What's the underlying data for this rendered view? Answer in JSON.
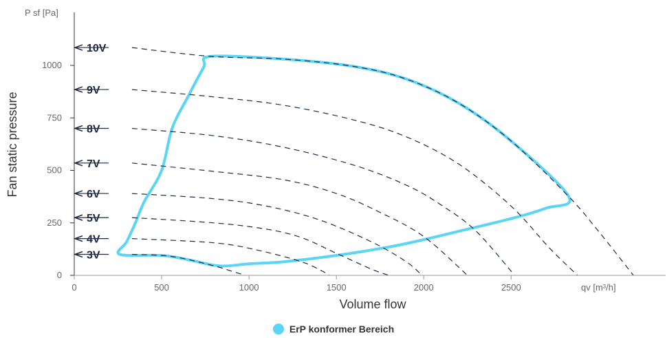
{
  "chart_data": {
    "type": "line",
    "xlabel": "Volume flow",
    "ylabel": "Fan static pressure",
    "x_unit_label": "qv [m³/h]",
    "y_unit_label": "P sf [Pa]",
    "xlim": [
      0,
      3400
    ],
    "ylim": [
      0,
      1250
    ],
    "x_ticks": [
      0,
      500,
      1000,
      1500,
      2000,
      2500
    ],
    "y_ticks": [
      0,
      250,
      500,
      750,
      1000
    ],
    "grid": false,
    "voltage_curves": [
      {
        "name": "10V",
        "y_axis_marker": 1085,
        "points": [
          [
            330,
            1075
          ],
          [
            780,
            1043
          ],
          [
            1200,
            1030
          ],
          [
            1600,
            995
          ],
          [
            1900,
            935
          ],
          [
            2200,
            820
          ],
          [
            2500,
            640
          ],
          [
            2830,
            375
          ],
          [
            3000,
            210
          ],
          [
            3200,
            0
          ]
        ]
      },
      {
        "name": "9V",
        "y_axis_marker": 885,
        "points": [
          [
            330,
            870
          ],
          [
            800,
            850
          ],
          [
            1200,
            810
          ],
          [
            1600,
            740
          ],
          [
            1900,
            660
          ],
          [
            2200,
            530
          ],
          [
            2500,
            330
          ],
          [
            2720,
            130
          ],
          [
            2880,
            0
          ]
        ]
      },
      {
        "name": "8V",
        "y_axis_marker": 700,
        "points": [
          [
            330,
            695
          ],
          [
            800,
            665
          ],
          [
            1200,
            610
          ],
          [
            1600,
            525
          ],
          [
            1900,
            430
          ],
          [
            2100,
            335
          ],
          [
            2300,
            210
          ],
          [
            2520,
            0
          ]
        ]
      },
      {
        "name": "7V",
        "y_axis_marker": 535,
        "points": [
          [
            330,
            520
          ],
          [
            800,
            495
          ],
          [
            1200,
            455
          ],
          [
            1500,
            390
          ],
          [
            1750,
            300
          ],
          [
            2000,
            185
          ],
          [
            2250,
            0
          ]
        ]
      },
      {
        "name": "6V",
        "y_axis_marker": 390,
        "points": [
          [
            330,
            385
          ],
          [
            800,
            365
          ],
          [
            1100,
            330
          ],
          [
            1400,
            265
          ],
          [
            1700,
            160
          ],
          [
            1900,
            65
          ],
          [
            1990,
            0
          ]
        ]
      },
      {
        "name": "5V",
        "y_axis_marker": 275,
        "points": [
          [
            330,
            268
          ],
          [
            800,
            250
          ],
          [
            1100,
            220
          ],
          [
            1300,
            180
          ],
          [
            1500,
            105
          ],
          [
            1700,
            30
          ],
          [
            1800,
            0
          ]
        ]
      },
      {
        "name": "4V",
        "y_axis_marker": 175,
        "points": [
          [
            330,
            172
          ],
          [
            800,
            155
          ],
          [
            1050,
            120
          ],
          [
            1300,
            65
          ],
          [
            1420,
            20
          ],
          [
            1460,
            0
          ]
        ]
      },
      {
        "name": "3V",
        "y_axis_marker": 100,
        "points": [
          [
            330,
            98
          ],
          [
            560,
            90
          ],
          [
            800,
            45
          ],
          [
            900,
            20
          ],
          [
            980,
            0
          ]
        ]
      }
    ],
    "erp_region": {
      "name": "ErP konformer Bereich",
      "color": "#5ad5f5",
      "points": [
        [
          780,
          1043
        ],
        [
          1200,
          1030
        ],
        [
          1600,
          995
        ],
        [
          1900,
          935
        ],
        [
          2200,
          820
        ],
        [
          2500,
          640
        ],
        [
          2830,
          375
        ],
        [
          2700,
          320
        ],
        [
          2500,
          270
        ],
        [
          2200,
          210
        ],
        [
          2000,
          170
        ],
        [
          1800,
          135
        ],
        [
          1500,
          95
        ],
        [
          1200,
          65
        ],
        [
          1000,
          55
        ],
        [
          830,
          45
        ],
        [
          650,
          75
        ],
        [
          500,
          95
        ],
        [
          260,
          100
        ],
        [
          300,
          160
        ],
        [
          350,
          250
        ],
        [
          400,
          350
        ],
        [
          500,
          500
        ],
        [
          560,
          700
        ],
        [
          650,
          850
        ],
        [
          740,
          990
        ]
      ]
    }
  }
}
